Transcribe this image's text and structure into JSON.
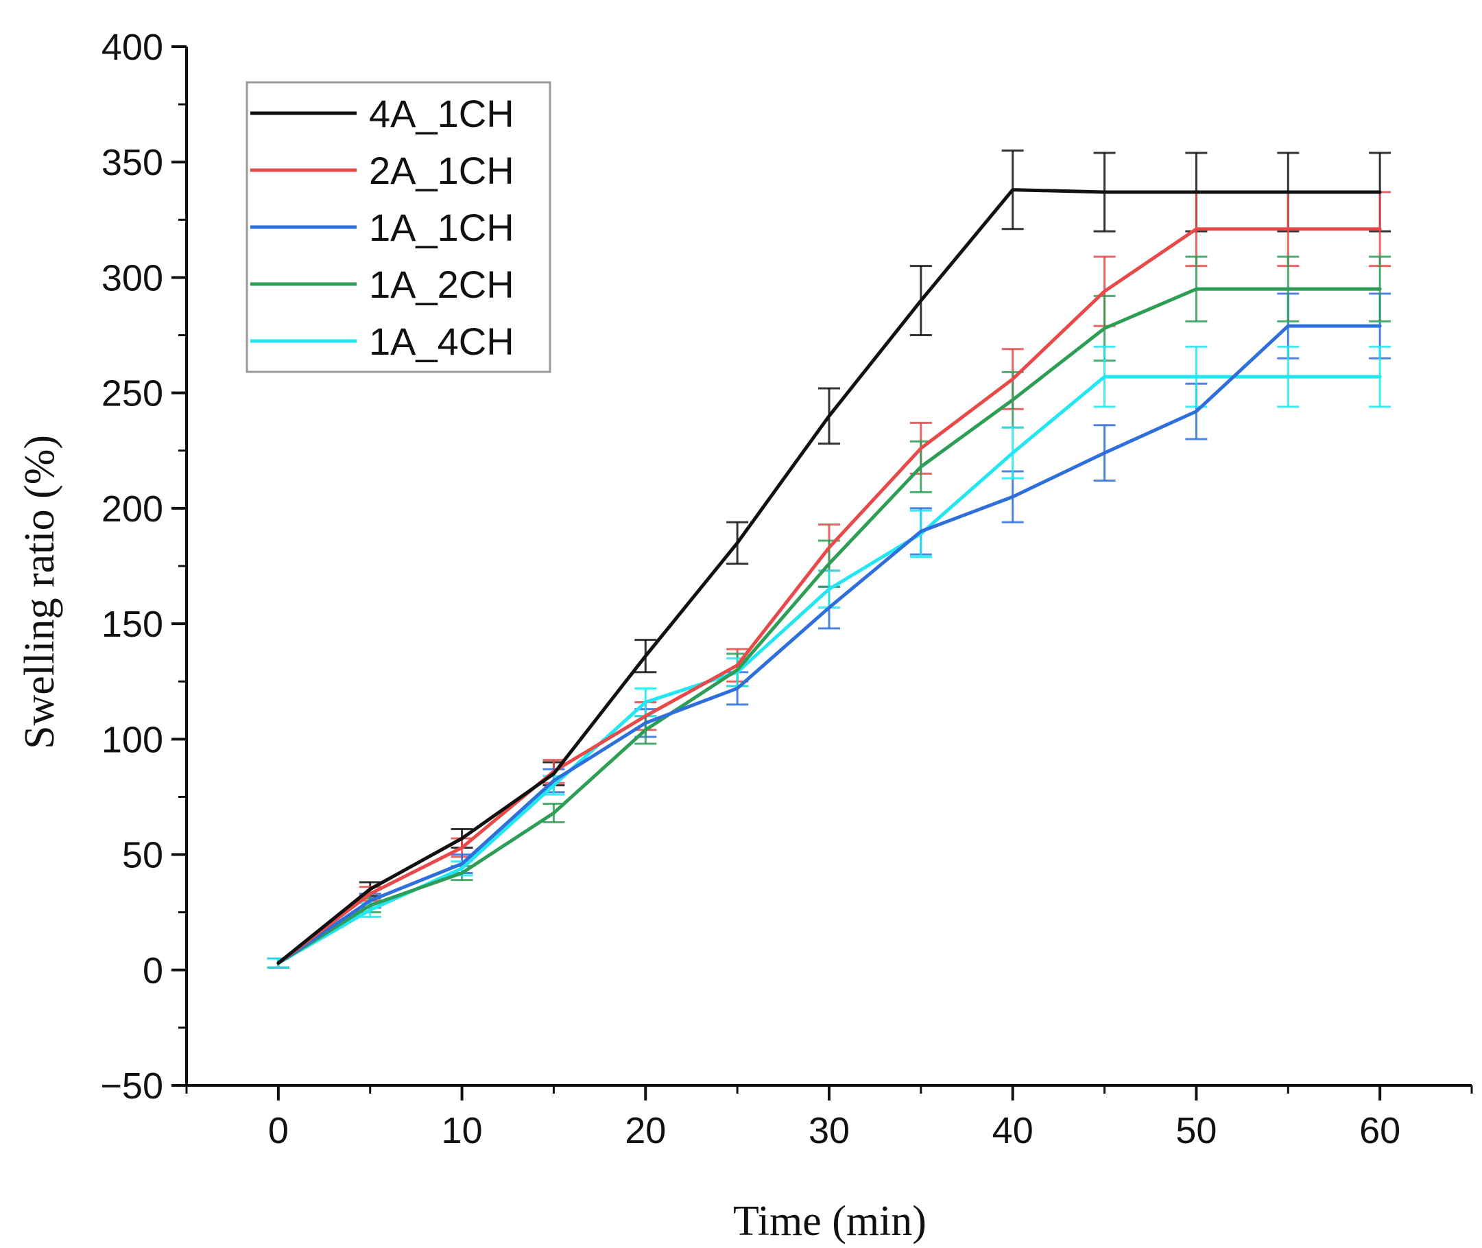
{
  "chart_data": {
    "type": "line",
    "title": "",
    "xlabel": "Time (min)",
    "ylabel": "Swelling ratio (%)",
    "xlim": [
      -5,
      65
    ],
    "ylim": [
      -50,
      400
    ],
    "xticks": [
      0,
      10,
      20,
      30,
      40,
      50,
      60
    ],
    "yticks": [
      -50,
      0,
      50,
      100,
      150,
      200,
      250,
      300,
      350,
      400
    ],
    "xtick_labels": [
      "0",
      "10",
      "20",
      "30",
      "40",
      "50",
      "60"
    ],
    "ytick_labels": [
      "−50",
      "0",
      "50",
      "100",
      "150",
      "200",
      "250",
      "300",
      "350",
      "400"
    ],
    "grid": false,
    "legend_position": "top-left",
    "x": [
      0,
      5,
      10,
      15,
      20,
      25,
      30,
      35,
      40,
      45,
      50,
      55,
      60
    ],
    "series": [
      {
        "name": "4A_1CH",
        "color": "#111111",
        "values": [
          3,
          35,
          57,
          85,
          136,
          185,
          240,
          290,
          338,
          337,
          337,
          337,
          337
        ],
        "errors": [
          2,
          3,
          4,
          5,
          7,
          9,
          12,
          15,
          17,
          17,
          17,
          17,
          17
        ]
      },
      {
        "name": "2A_1CH",
        "color": "#e84a4a",
        "values": [
          3,
          33,
          53,
          86,
          110,
          132,
          183,
          226,
          256,
          294,
          321,
          321,
          321
        ],
        "errors": [
          2,
          3,
          4,
          5,
          6,
          7,
          10,
          11,
          13,
          15,
          16,
          16,
          16
        ]
      },
      {
        "name": "1A_1CH",
        "color": "#2f6fdc",
        "values": [
          3,
          30,
          46,
          82,
          107,
          122,
          157,
          190,
          205,
          224,
          242,
          279,
          279
        ],
        "errors": [
          2,
          3,
          4,
          5,
          6,
          7,
          9,
          10,
          11,
          12,
          12,
          14,
          14
        ]
      },
      {
        "name": "1A_2CH",
        "color": "#2e9e57",
        "values": [
          3,
          28,
          42,
          68,
          104,
          130,
          176,
          218,
          247,
          278,
          295,
          295,
          295
        ],
        "errors": [
          2,
          3,
          3,
          4,
          6,
          7,
          10,
          11,
          12,
          14,
          14,
          14,
          14
        ]
      },
      {
        "name": "1A_4CH",
        "color": "#22e6f2",
        "values": [
          3,
          26,
          44,
          80,
          116,
          129,
          165,
          189,
          224,
          257,
          257,
          257,
          257
        ],
        "errors": [
          2,
          3,
          3,
          4,
          6,
          6,
          8,
          10,
          11,
          13,
          13,
          13,
          13
        ]
      }
    ]
  }
}
